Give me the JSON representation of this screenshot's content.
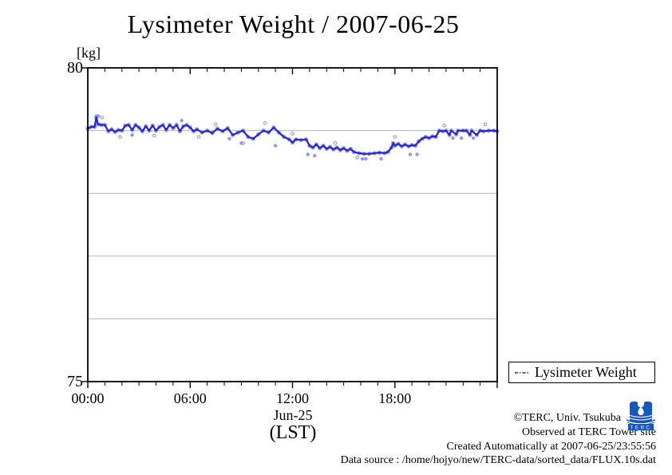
{
  "title": "Lysimeter Weight / 2007-06-25",
  "axes": {
    "y_unit": "[kg]",
    "y_max": "80",
    "y_min": "75",
    "x_ticks": [
      "00:00",
      "06:00",
      "12:00",
      "18:00"
    ],
    "x_date": "Jun-25",
    "x_tz": "(LST)"
  },
  "legend": {
    "label": "Lysimeter Weight"
  },
  "footer": {
    "copyright": "©TERC, Univ. Tsukuba",
    "observed": "Observed at TERC Tower site",
    "created": "Created Automatically at 2007-06-25/23:55:56",
    "source": "Data source : /home/hojyo/new/TERC-data/sorted_data/FLUX.10s.dat"
  },
  "logo": {
    "text": "TERC",
    "color": "#1757c2"
  },
  "chart_data": {
    "type": "line",
    "title": "Lysimeter Weight / 2007-06-25",
    "xlabel": "Jun-25 (LST)",
    "ylabel": "kg",
    "xlim_hours": [
      0,
      24
    ],
    "ylim": [
      75,
      80
    ],
    "x_tick_hours": [
      0,
      6,
      12,
      18
    ],
    "x_tick_labels": [
      "00:00",
      "06:00",
      "12:00",
      "18:00"
    ],
    "y_tick_values": [
      75,
      80
    ],
    "gridline_values": [
      76,
      77,
      78,
      79
    ],
    "minor_tick_interval_hours": 1,
    "major_tick_interval_hours": 6,
    "grid": "horizontal-only",
    "legend_position": "outside-bottom-right",
    "line_color": "#2424cf",
    "marker_color": "#8a8aee",
    "gridline_color": "#b3b3b3",
    "series": [
      {
        "name": "Lysimeter Weight",
        "points": [
          [
            0.0,
            79.03
          ],
          [
            0.2,
            79.06
          ],
          [
            0.4,
            79.06
          ],
          [
            0.5,
            79.21
          ],
          [
            0.6,
            79.1
          ],
          [
            0.8,
            79.09
          ],
          [
            1.0,
            79.09
          ],
          [
            1.2,
            78.99
          ],
          [
            1.4,
            79.02
          ],
          [
            1.6,
            78.98
          ],
          [
            1.8,
            79.01
          ],
          [
            2.0,
            79.0
          ],
          [
            2.2,
            79.08
          ],
          [
            2.4,
            79.09
          ],
          [
            2.6,
            79.01
          ],
          [
            2.8,
            79.09
          ],
          [
            3.0,
            79.05
          ],
          [
            3.2,
            78.99
          ],
          [
            3.4,
            79.07
          ],
          [
            3.6,
            79.0
          ],
          [
            3.8,
            79.08
          ],
          [
            4.0,
            79.0
          ],
          [
            4.2,
            79.06
          ],
          [
            4.4,
            79.09
          ],
          [
            4.6,
            79.01
          ],
          [
            4.8,
            79.09
          ],
          [
            5.0,
            79.04
          ],
          [
            5.2,
            79.09
          ],
          [
            5.4,
            78.99
          ],
          [
            5.6,
            79.07
          ],
          [
            5.8,
            79.09
          ],
          [
            6.0,
            79.05
          ],
          [
            6.2,
            78.99
          ],
          [
            6.4,
            79.02
          ],
          [
            6.7,
            78.97
          ],
          [
            7.0,
            79.0
          ],
          [
            7.3,
            78.96
          ],
          [
            7.6,
            79.03
          ],
          [
            7.9,
            78.99
          ],
          [
            8.2,
            79.04
          ],
          [
            8.5,
            78.93
          ],
          [
            8.8,
            78.97
          ],
          [
            9.1,
            79.0
          ],
          [
            9.4,
            78.9
          ],
          [
            9.7,
            78.87
          ],
          [
            10.0,
            78.94
          ],
          [
            10.3,
            79.0
          ],
          [
            10.6,
            78.97
          ],
          [
            10.9,
            79.05
          ],
          [
            11.2,
            78.97
          ],
          [
            11.5,
            78.9
          ],
          [
            11.8,
            78.86
          ],
          [
            12.0,
            78.81
          ],
          [
            12.2,
            78.86
          ],
          [
            12.5,
            78.85
          ],
          [
            12.8,
            78.86
          ],
          [
            13.0,
            78.76
          ],
          [
            13.2,
            78.73
          ],
          [
            13.4,
            78.78
          ],
          [
            13.6,
            78.72
          ],
          [
            13.8,
            78.76
          ],
          [
            14.0,
            78.71
          ],
          [
            14.2,
            78.74
          ],
          [
            14.4,
            78.7
          ],
          [
            14.6,
            78.73
          ],
          [
            14.8,
            78.69
          ],
          [
            15.0,
            78.72
          ],
          [
            15.2,
            78.68
          ],
          [
            15.4,
            78.71
          ],
          [
            15.6,
            78.66
          ],
          [
            15.9,
            78.64
          ],
          [
            16.2,
            78.63
          ],
          [
            16.5,
            78.63
          ],
          [
            16.8,
            78.64
          ],
          [
            17.1,
            78.65
          ],
          [
            17.4,
            78.64
          ],
          [
            17.6,
            78.66
          ],
          [
            17.8,
            78.73
          ],
          [
            17.9,
            78.8
          ],
          [
            18.0,
            78.76
          ],
          [
            18.2,
            78.79
          ],
          [
            18.4,
            78.75
          ],
          [
            18.6,
            78.78
          ],
          [
            18.8,
            78.75
          ],
          [
            19.0,
            78.77
          ],
          [
            19.2,
            78.76
          ],
          [
            19.4,
            78.83
          ],
          [
            19.6,
            78.87
          ],
          [
            19.8,
            78.9
          ],
          [
            20.0,
            78.88
          ],
          [
            20.2,
            78.91
          ],
          [
            20.4,
            78.9
          ],
          [
            20.6,
            79.0
          ],
          [
            20.8,
            78.99
          ],
          [
            21.0,
            79.0
          ],
          [
            21.2,
            78.93
          ],
          [
            21.3,
            79.0
          ],
          [
            21.6,
            78.94
          ],
          [
            21.7,
            79.0
          ],
          [
            22.0,
            79.0
          ],
          [
            22.2,
            79.0
          ],
          [
            22.4,
            78.93
          ],
          [
            22.5,
            79.0
          ],
          [
            22.8,
            78.93
          ],
          [
            23.0,
            79.0
          ],
          [
            23.2,
            78.99
          ],
          [
            23.5,
            79.0
          ],
          [
            23.8,
            79.0
          ],
          [
            24.0,
            78.99
          ]
        ]
      }
    ],
    "outlier_points": [
      [
        0.5,
        79.23,
        "f"
      ],
      [
        0.62,
        79.23,
        "f"
      ],
      [
        0.85,
        79.21,
        "o"
      ],
      [
        1.9,
        78.9,
        "o"
      ],
      [
        2.6,
        78.93,
        "f"
      ],
      [
        3.9,
        78.92,
        "o"
      ],
      [
        5.5,
        79.16,
        "f"
      ],
      [
        6.5,
        78.9,
        "o"
      ],
      [
        7.5,
        79.1,
        "o"
      ],
      [
        8.3,
        78.87,
        "f"
      ],
      [
        9.0,
        78.8,
        "f"
      ],
      [
        9.1,
        78.8,
        "o"
      ],
      [
        10.4,
        79.12,
        "o"
      ],
      [
        11.0,
        78.76,
        "f"
      ],
      [
        12.0,
        78.95,
        "o"
      ],
      [
        12.9,
        78.62,
        "f"
      ],
      [
        13.3,
        78.6,
        "f"
      ],
      [
        14.5,
        78.8,
        "o"
      ],
      [
        15.8,
        78.57,
        "o"
      ],
      [
        16.1,
        78.55,
        "f"
      ],
      [
        16.3,
        78.55,
        "f"
      ],
      [
        17.2,
        78.55,
        "f"
      ],
      [
        18.0,
        78.9,
        "o"
      ],
      [
        18.9,
        78.62,
        "f"
      ],
      [
        19.3,
        78.62,
        "f"
      ],
      [
        20.9,
        79.08,
        "o"
      ],
      [
        21.4,
        78.88,
        "f"
      ],
      [
        21.9,
        78.88,
        "f"
      ],
      [
        22.6,
        78.88,
        "f"
      ],
      [
        23.3,
        79.1,
        "o"
      ]
    ]
  }
}
